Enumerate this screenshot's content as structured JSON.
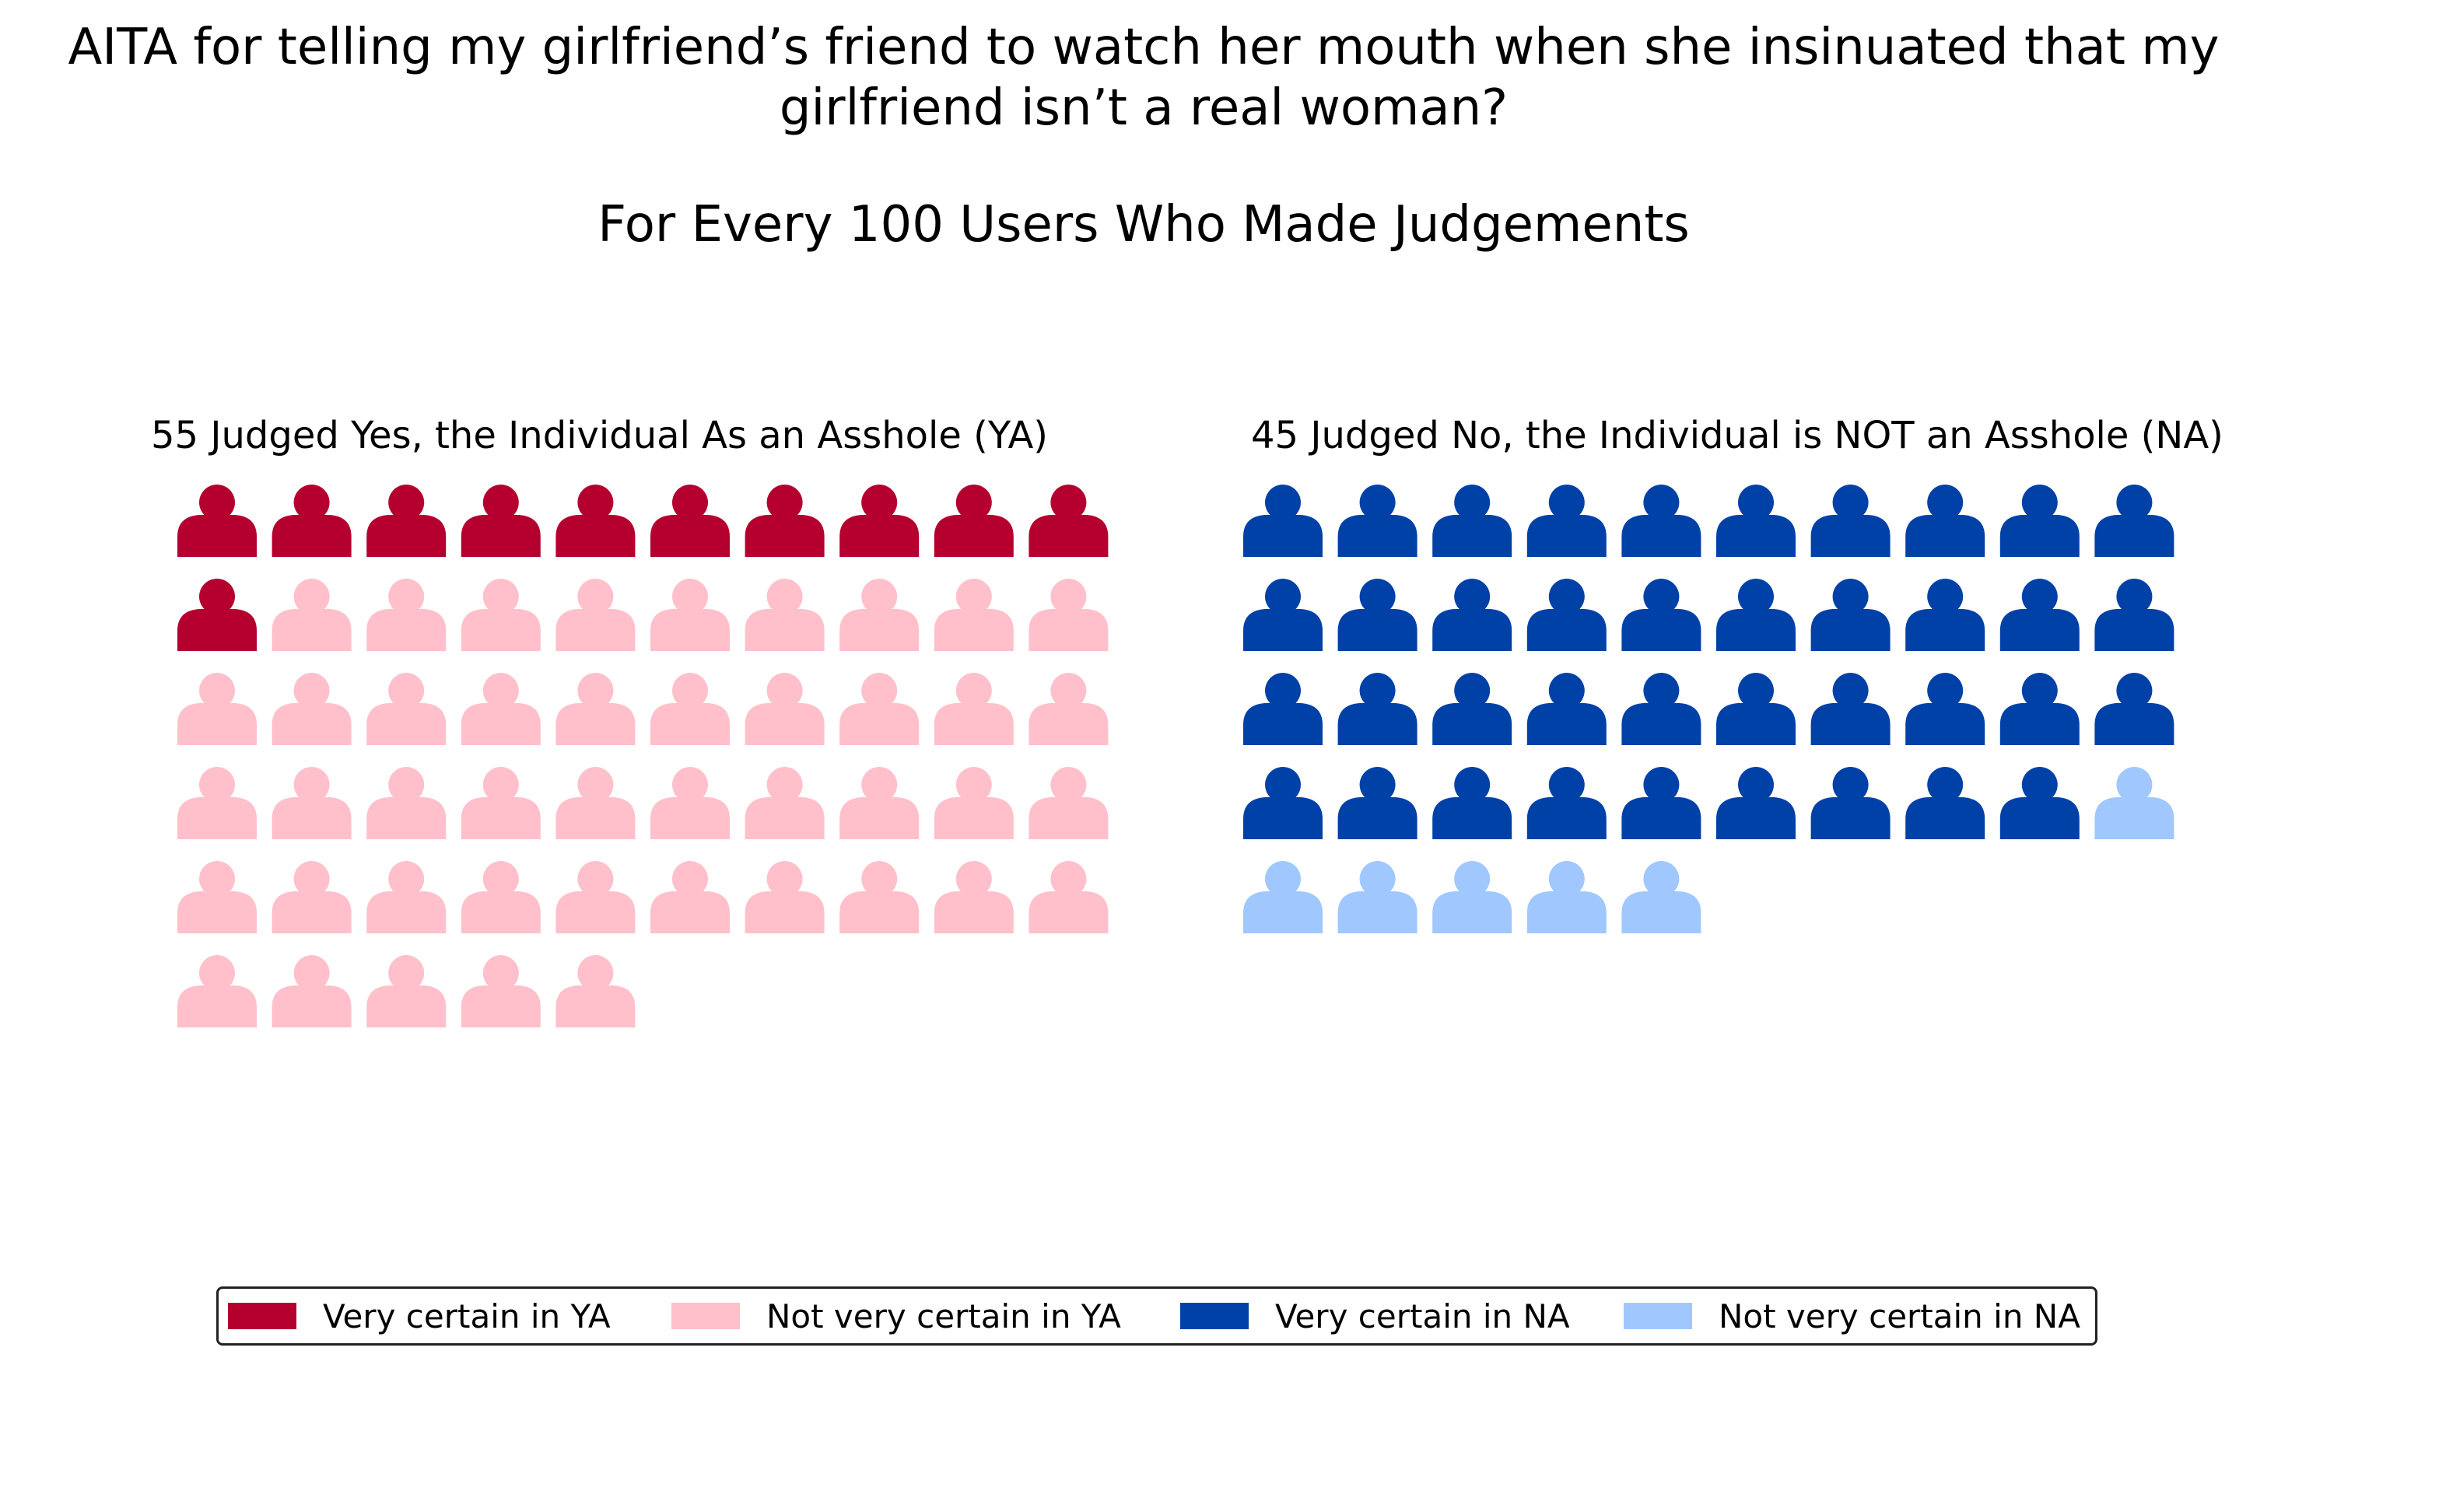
{
  "title": {
    "line1": "AITA for telling my girlfriend’s friend to watch her mouth when she insinuated that my",
    "line2": "girlfriend isn’t a real woman?",
    "subtitle": "For Every 100 Users Who Made Judgements"
  },
  "chart_data": [
    {
      "type": "pictogram",
      "title": "55 Judged Yes, the Individual As an Asshole (YA)",
      "icon": "person-icon",
      "columns": 10,
      "total": 55,
      "series": [
        {
          "name": "Very certain in YA",
          "value": 11,
          "color": "#b5002f"
        },
        {
          "name": "Not very certain in YA",
          "value": 44,
          "color": "#ffc0cb"
        }
      ]
    },
    {
      "type": "pictogram",
      "title": "45 Judged No, the Individual is NOT an Asshole (NA)",
      "icon": "person-icon",
      "columns": 10,
      "total": 45,
      "series": [
        {
          "name": "Very certain in NA",
          "value": 39,
          "color": "#0041a8"
        },
        {
          "name": "Not very certain in NA",
          "value": 6,
          "color": "#a0c8ff"
        }
      ]
    }
  ],
  "legend": {
    "placement": "bottom-center",
    "items": [
      {
        "label": "Very certain in YA",
        "color": "#b5002f"
      },
      {
        "label": "Not very certain in YA",
        "color": "#ffc0cb"
      },
      {
        "label": "Very certain in NA",
        "color": "#0041a8"
      },
      {
        "label": "Not very certain in NA",
        "color": "#a0c8ff"
      }
    ]
  }
}
